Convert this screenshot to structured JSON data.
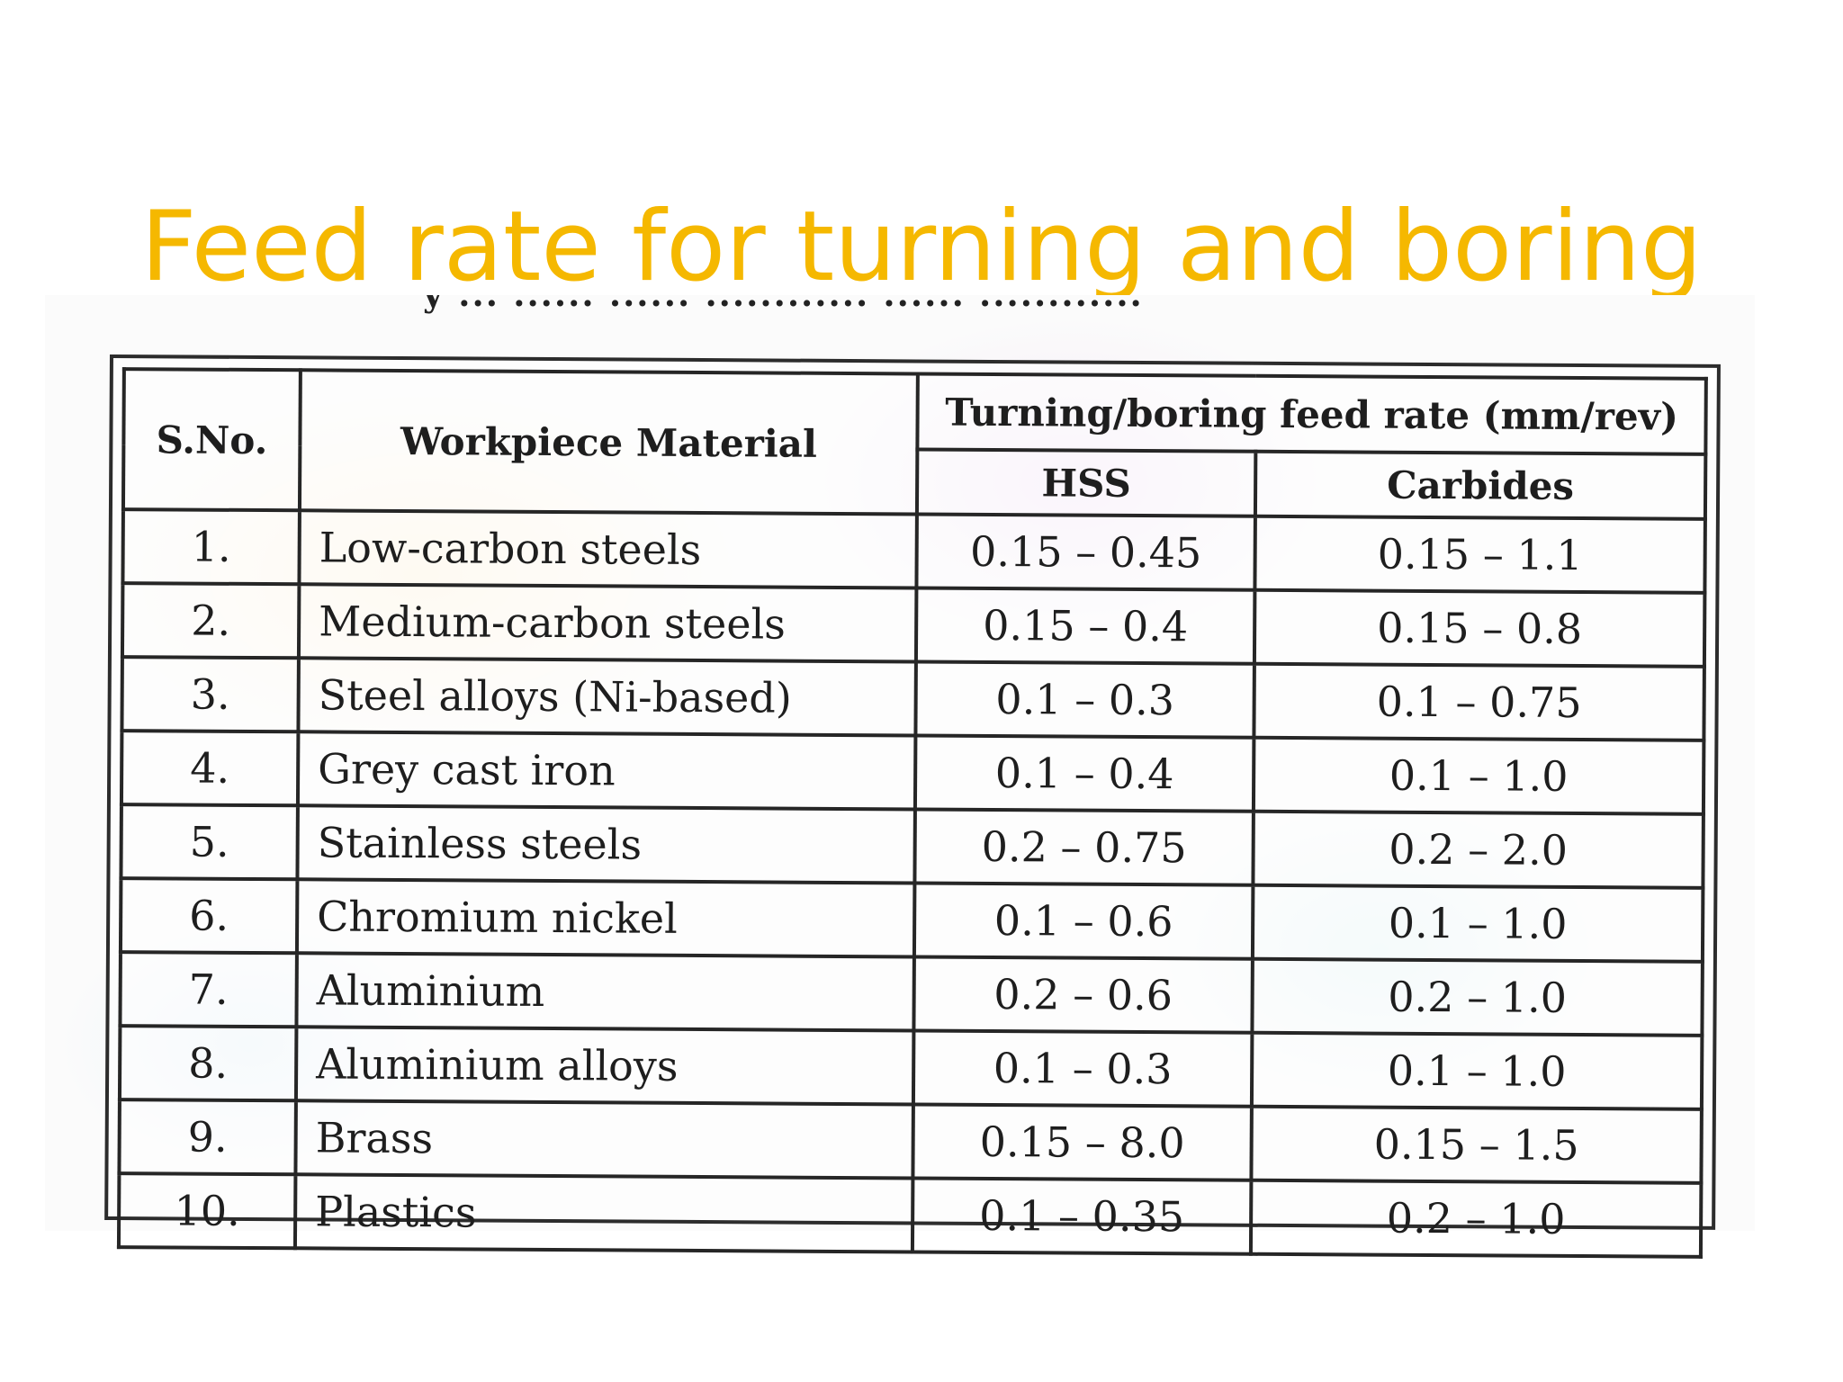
{
  "slide": {
    "title": "Feed rate for turning and boring"
  },
  "table": {
    "caption_fragment": "y ... ...... ...... ............ ...... ............",
    "headers": {
      "sno": "S.No.",
      "material": "Workpiece Material",
      "group": "Turning/boring feed rate (mm/rev)",
      "hss": "HSS",
      "carbides": "Carbides"
    },
    "rows": [
      {
        "sno": "1.",
        "material": "Low-carbon steels",
        "hss": "0.15 – 0.45",
        "carbides": "0.15 – 1.1"
      },
      {
        "sno": "2.",
        "material": "Medium-carbon steels",
        "hss": "0.15 – 0.4",
        "carbides": "0.15 – 0.8"
      },
      {
        "sno": "3.",
        "material": "Steel alloys (Ni-based)",
        "hss": "0.1 – 0.3",
        "carbides": "0.1 – 0.75"
      },
      {
        "sno": "4.",
        "material": "Grey cast iron",
        "hss": "0.1 – 0.4",
        "carbides": "0.1 – 1.0"
      },
      {
        "sno": "5.",
        "material": "Stainless steels",
        "hss": "0.2 – 0.75",
        "carbides": "0.2 – 2.0"
      },
      {
        "sno": "6.",
        "material": "Chromium nickel",
        "hss": "0.1 – 0.6",
        "carbides": "0.1 – 1.0"
      },
      {
        "sno": "7.",
        "material": "Aluminium",
        "hss": "0.2 – 0.6",
        "carbides": "0.2 – 1.0"
      },
      {
        "sno": "8.",
        "material": "Aluminium alloys",
        "hss": "0.1 – 0.3",
        "carbides": "0.1 – 1.0"
      },
      {
        "sno": "9.",
        "material": "Brass",
        "hss": "0.15 – 8.0",
        "carbides": "0.15 – 1.5"
      },
      {
        "sno": "10.",
        "material": "Plastics",
        "hss": "0.1 – 0.35",
        "carbides": "0.2 – 1.0"
      }
    ]
  },
  "colors": {
    "title": "#f5b800",
    "table_border": "#262626"
  }
}
